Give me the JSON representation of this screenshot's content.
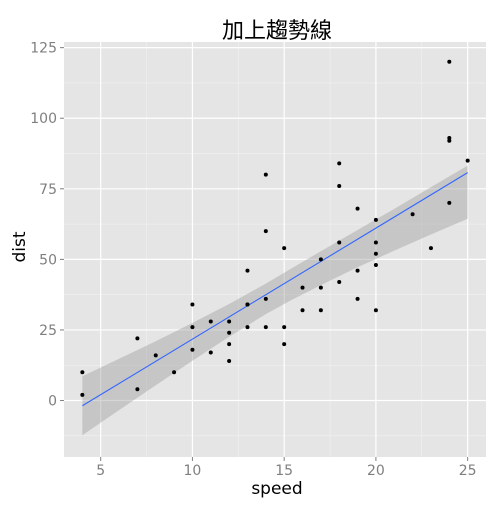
{
  "chart_data": {
    "type": "scatter",
    "title": "加上趨勢線",
    "xlabel": "speed",
    "ylabel": "dist",
    "xlim": [
      3.0,
      26.0
    ],
    "ylim": [
      -20,
      127
    ],
    "xticks": [
      5,
      10,
      15,
      20,
      25
    ],
    "yticks": [
      0,
      25,
      50,
      75,
      100,
      125
    ],
    "grid": true,
    "legend": "none",
    "points": [
      {
        "x": 4,
        "y": 2
      },
      {
        "x": 4,
        "y": 10
      },
      {
        "x": 7,
        "y": 4
      },
      {
        "x": 7,
        "y": 22
      },
      {
        "x": 8,
        "y": 16
      },
      {
        "x": 9,
        "y": 10
      },
      {
        "x": 10,
        "y": 18
      },
      {
        "x": 10,
        "y": 26
      },
      {
        "x": 10,
        "y": 34
      },
      {
        "x": 11,
        "y": 17
      },
      {
        "x": 11,
        "y": 28
      },
      {
        "x": 12,
        "y": 14
      },
      {
        "x": 12,
        "y": 20
      },
      {
        "x": 12,
        "y": 24
      },
      {
        "x": 12,
        "y": 28
      },
      {
        "x": 13,
        "y": 26
      },
      {
        "x": 13,
        "y": 34
      },
      {
        "x": 13,
        "y": 34
      },
      {
        "x": 13,
        "y": 46
      },
      {
        "x": 14,
        "y": 26
      },
      {
        "x": 14,
        "y": 36
      },
      {
        "x": 14,
        "y": 60
      },
      {
        "x": 14,
        "y": 80
      },
      {
        "x": 15,
        "y": 20
      },
      {
        "x": 15,
        "y": 26
      },
      {
        "x": 15,
        "y": 54
      },
      {
        "x": 16,
        "y": 32
      },
      {
        "x": 16,
        "y": 40
      },
      {
        "x": 17,
        "y": 32
      },
      {
        "x": 17,
        "y": 40
      },
      {
        "x": 17,
        "y": 50
      },
      {
        "x": 18,
        "y": 42
      },
      {
        "x": 18,
        "y": 56
      },
      {
        "x": 18,
        "y": 76
      },
      {
        "x": 18,
        "y": 84
      },
      {
        "x": 19,
        "y": 36
      },
      {
        "x": 19,
        "y": 46
      },
      {
        "x": 19,
        "y": 68
      },
      {
        "x": 20,
        "y": 32
      },
      {
        "x": 20,
        "y": 48
      },
      {
        "x": 20,
        "y": 52
      },
      {
        "x": 20,
        "y": 56
      },
      {
        "x": 20,
        "y": 64
      },
      {
        "x": 22,
        "y": 66
      },
      {
        "x": 23,
        "y": 54
      },
      {
        "x": 24,
        "y": 70
      },
      {
        "x": 24,
        "y": 92
      },
      {
        "x": 24,
        "y": 93
      },
      {
        "x": 24,
        "y": 120
      },
      {
        "x": 25,
        "y": 85
      }
    ],
    "trend_line": {
      "method": "lm",
      "x": [
        4,
        25
      ],
      "y": [
        -1.85,
        80.73
      ],
      "color": "#3366ff"
    },
    "confidence_band": {
      "level": 0.95,
      "color": "#999999",
      "x": [
        4,
        6,
        8,
        10,
        12,
        14,
        15.4,
        17,
        19,
        21,
        23,
        25
      ],
      "lower": [
        -12.3,
        -3.4,
        5.4,
        14.1,
        22.6,
        30.6,
        35.6,
        40.9,
        47.2,
        53.1,
        58.8,
        64.4
      ],
      "upper": [
        8.6,
        14.8,
        21.0,
        27.5,
        34.2,
        41.4,
        46.8,
        52.9,
        60.4,
        67.9,
        75.6,
        83.2
      ]
    },
    "colors": {
      "panel_background": "#e5e5e5",
      "grid_major": "#ffffff",
      "grid_minor": "#f2f2f2",
      "point": "#000000",
      "tick_label": "#7f7f7f",
      "axis_title": "#000000"
    }
  }
}
